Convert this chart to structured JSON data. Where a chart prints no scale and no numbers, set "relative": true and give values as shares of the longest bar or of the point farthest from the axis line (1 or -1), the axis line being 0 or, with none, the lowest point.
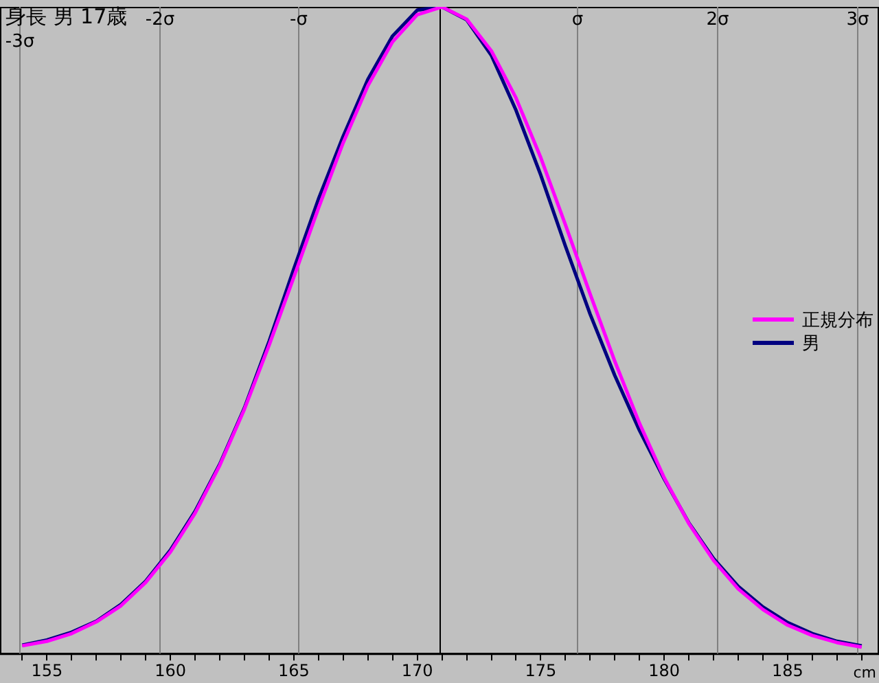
{
  "chart_data": {
    "type": "line",
    "title": "身長 男 17歳",
    "xlabel": "cm",
    "relative": true,
    "legend": "right",
    "x": [
      154,
      155,
      156,
      157,
      158,
      159,
      160,
      161,
      162,
      163,
      164,
      165,
      166,
      167,
      168,
      169,
      170,
      171,
      172,
      173,
      174,
      175,
      176,
      177,
      178,
      179,
      180,
      181,
      182,
      183,
      184,
      185,
      186,
      187,
      188
    ],
    "xlim": [
      153.1,
      188.7
    ],
    "xticks": [
      {
        "value": 154,
        "label": null
      },
      155,
      {
        "value": 156,
        "label": null
      },
      {
        "value": 157,
        "label": null
      },
      {
        "value": 158,
        "label": null
      },
      {
        "value": 159,
        "label": null
      },
      160,
      {
        "value": 161,
        "label": null
      },
      {
        "value": 162,
        "label": null
      },
      {
        "value": 163,
        "label": null
      },
      {
        "value": 164,
        "label": null
      },
      165,
      {
        "value": 166,
        "label": null
      },
      {
        "value": 167,
        "label": null
      },
      {
        "value": 168,
        "label": null
      },
      {
        "value": 169,
        "label": null
      },
      170,
      {
        "value": 171,
        "label": null
      },
      {
        "value": 172,
        "label": null
      },
      {
        "value": 173,
        "label": null
      },
      {
        "value": 174,
        "label": null
      },
      175,
      {
        "value": 176,
        "label": null
      },
      {
        "value": 177,
        "label": null
      },
      {
        "value": 178,
        "label": null
      },
      {
        "value": 179,
        "label": null
      },
      180,
      {
        "value": 181,
        "label": null
      },
      {
        "value": 182,
        "label": null
      },
      {
        "value": 183,
        "label": null
      },
      {
        "value": 184,
        "label": null
      },
      185,
      {
        "value": 186,
        "label": null
      },
      {
        "value": 187,
        "label": null
      },
      {
        "value": 188,
        "label": null
      }
    ],
    "series": [
      {
        "name": "正規分布",
        "color": "#ff00ff",
        "values": [
          0.012,
          0.019,
          0.031,
          0.049,
          0.074,
          0.11,
          0.157,
          0.217,
          0.291,
          0.378,
          0.477,
          0.582,
          0.689,
          0.79,
          0.878,
          0.946,
          0.988,
          1,
          0.981,
          0.932,
          0.859,
          0.767,
          0.663,
          0.556,
          0.452,
          0.356,
          0.272,
          0.201,
          0.144,
          0.1,
          0.068,
          0.044,
          0.028,
          0.017,
          0.01
        ]
      },
      {
        "name": "男",
        "color": "#000080",
        "values": [
          0.013,
          0.021,
          0.033,
          0.05,
          0.076,
          0.112,
          0.16,
          0.22,
          0.293,
          0.38,
          0.483,
          0.595,
          0.703,
          0.8,
          0.888,
          0.955,
          0.995,
          1,
          0.98,
          0.925,
          0.84,
          0.74,
          0.63,
          0.525,
          0.43,
          0.345,
          0.27,
          0.202,
          0.147,
          0.104,
          0.072,
          0.048,
          0.031,
          0.019,
          0.012
        ]
      }
    ],
    "ref_lines": [
      {
        "axis": "x",
        "value": 153.87,
        "label": "-3σ",
        "color": "#808080"
      },
      {
        "axis": "x",
        "value": 159.54,
        "label": "-2σ",
        "color": "#808080"
      },
      {
        "axis": "x",
        "value": 165.18,
        "label": "-σ",
        "color": "#808080"
      },
      {
        "axis": "x",
        "value": 170.88,
        "label": null,
        "color": "#000000"
      },
      {
        "axis": "x",
        "value": 176.48,
        "label": "σ",
        "color": "#808080"
      },
      {
        "axis": "x",
        "value": 182.14,
        "label": "2σ",
        "color": "#808080"
      },
      {
        "axis": "x",
        "value": 187.81,
        "label": "3σ",
        "color": "#808080"
      }
    ]
  }
}
